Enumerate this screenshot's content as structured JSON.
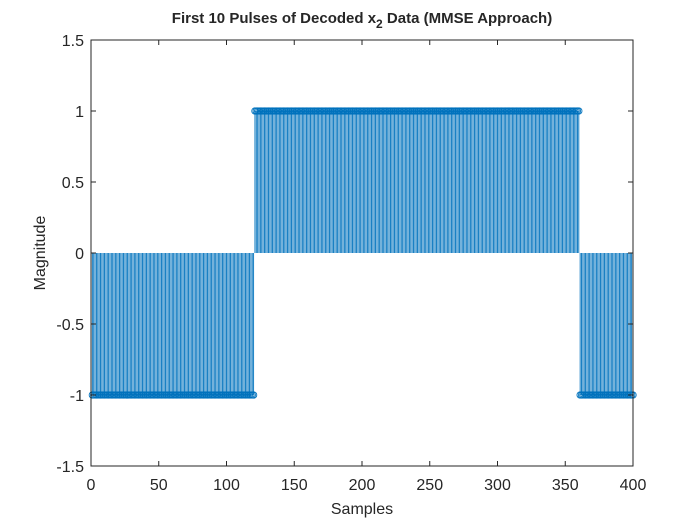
{
  "chart_data": {
    "type": "stem",
    "title_main": "First 10 Pulses of Decoded x",
    "title_subscript": "2",
    "title_suffix": " Data (MMSE Approach)",
    "xlabel": "Samples",
    "ylabel": "Magnitude",
    "xlim": [
      0,
      400
    ],
    "ylim": [
      -1.5,
      1.5
    ],
    "xticks": [
      0,
      50,
      100,
      150,
      200,
      250,
      300,
      350,
      400
    ],
    "yticks": [
      -1.5,
      -1,
      -0.5,
      0,
      0.5,
      1,
      1.5
    ],
    "xtick_labels": [
      "0",
      "50",
      "100",
      "150",
      "200",
      "250",
      "300",
      "350",
      "400"
    ],
    "ytick_labels": [
      "-1.5",
      "-1",
      "-0.5",
      "0",
      "0.5",
      "1",
      "1.5"
    ],
    "grid": false,
    "series": [
      {
        "color": "#0072BD",
        "segments": [
          {
            "x_start": 1,
            "x_end": 120,
            "value": -1
          },
          {
            "x_start": 121,
            "x_end": 360,
            "value": 1
          },
          {
            "x_start": 361,
            "x_end": 400,
            "value": -1
          }
        ]
      }
    ]
  }
}
